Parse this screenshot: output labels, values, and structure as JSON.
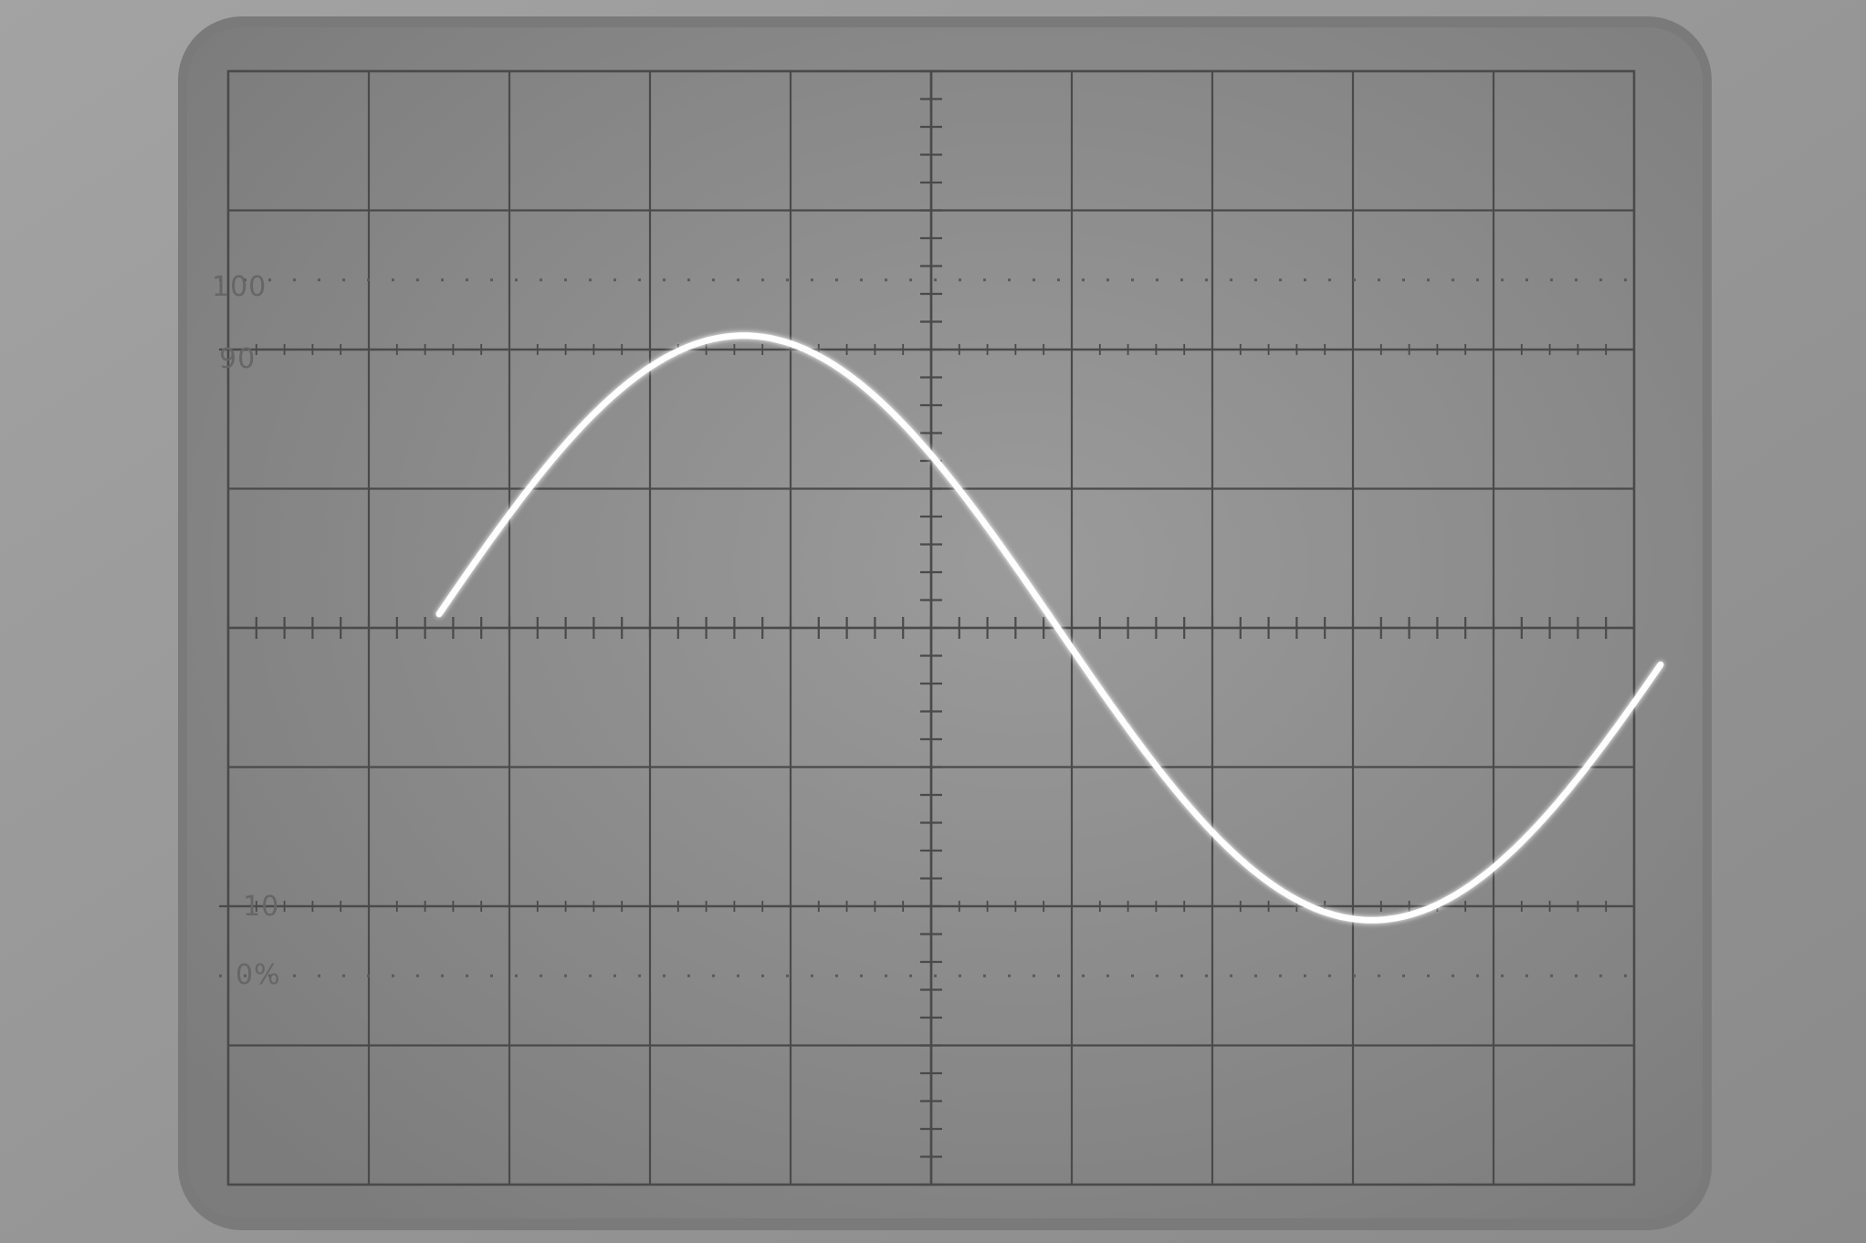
{
  "scale_labels": {
    "top": "100",
    "upper": "90",
    "lower": "10",
    "bottom": "0%"
  },
  "graticule": {
    "horizontal_divisions": 10,
    "vertical_divisions": 8,
    "minor_ticks_per_division": 5,
    "rise_time_markers_percent": [
      0,
      10,
      90,
      100
    ]
  },
  "colors": {
    "bezel": "#9a9a9a",
    "screen": "#8c8c8c",
    "grid": "#4a4a4a",
    "trace": "#ffffff"
  },
  "trace": {
    "waveform": "sine",
    "cycles_visible": 1,
    "amplitude_divisions": 2.1,
    "start_division": 1.5,
    "end_division": 10.2,
    "start_value_divisions": 0.1,
    "crossing_down_division": 5.9
  }
}
